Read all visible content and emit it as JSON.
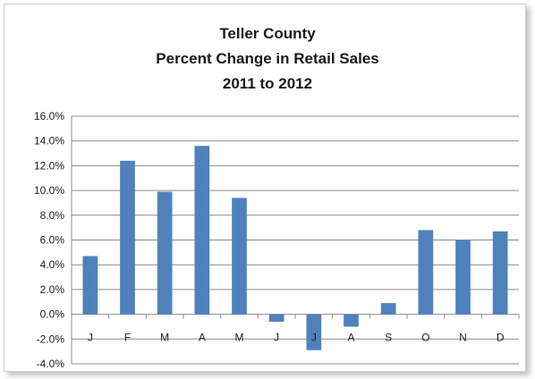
{
  "chart_data": {
    "type": "bar",
    "title": [
      "Teller County",
      "Percent Change in Retail Sales",
      "2011 to 2012"
    ],
    "xlabel": "",
    "ylabel": "",
    "categories": [
      "J",
      "F",
      "M",
      "A",
      "M",
      "J",
      "J",
      "A",
      "S",
      "O",
      "N",
      "D"
    ],
    "values": [
      4.7,
      12.4,
      9.9,
      13.6,
      9.4,
      -0.6,
      -2.9,
      -1.0,
      0.9,
      6.8,
      6.0,
      6.7
    ],
    "ylim": [
      -4.0,
      16.0
    ],
    "ytick_step": 2.0,
    "ytick_labels": [
      "-4.0%",
      "-2.0%",
      "0.0%",
      "2.0%",
      "4.0%",
      "6.0%",
      "8.0%",
      "10.0%",
      "12.0%",
      "14.0%",
      "16.0%"
    ],
    "grid": true,
    "legend": "none",
    "bar_color": "#4f81bd",
    "grid_color": "#8c8c8c"
  }
}
